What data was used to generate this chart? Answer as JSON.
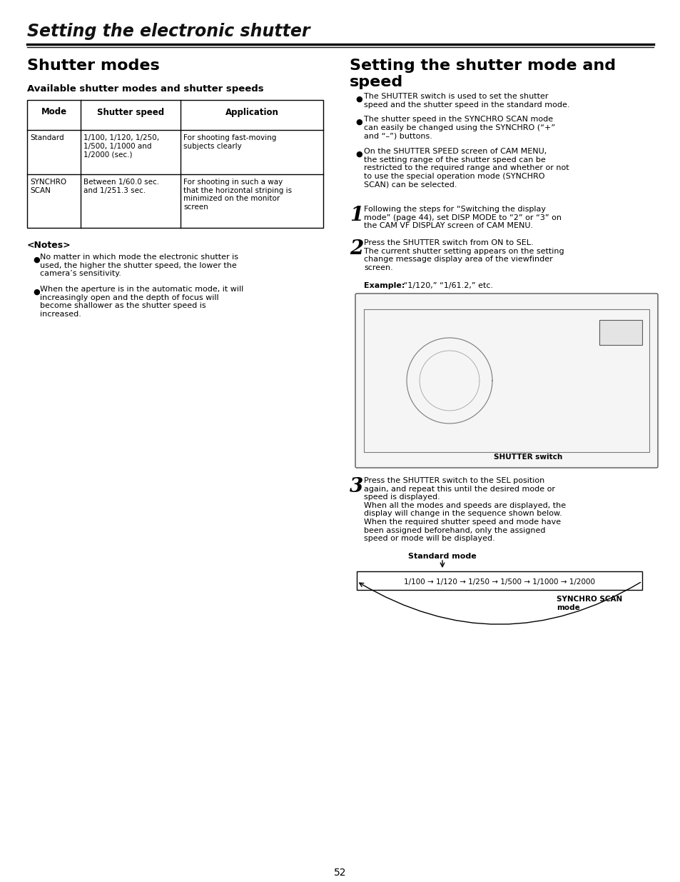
{
  "page_title": "Setting the electronic shutter",
  "left_col_title": "Shutter modes",
  "right_col_title": "Setting the shutter mode and\nspeed",
  "table_subtitle": "Available shutter modes and shutter speeds",
  "table_headers": [
    "Mode",
    "Shutter speed",
    "Application"
  ],
  "table_rows": [
    [
      "Standard",
      "1/100, 1/120, 1/250,\n1/500, 1/1000 and\n1/2000 (sec.)",
      "For shooting fast-moving\nsubjects clearly"
    ],
    [
      "SYNCHRO\nSCAN",
      "Between 1/60.0 sec.\nand 1/251.3 sec.",
      "For shooting in such a way\nthat the horizontal striping is\nminimized on the monitor\nscreen"
    ]
  ],
  "notes_title": "<Notes>",
  "notes": [
    "No matter in which mode the electronic shutter is\nused, the higher the shutter speed, the lower the\ncamera’s sensitivity.",
    "When the aperture is in the automatic mode, it will\nincreasingly open and the depth of focus will\nbecome shallower as the shutter speed is\nincreased."
  ],
  "right_bullets": [
    "The SHUTTER switch is used to set the shutter\nspeed and the shutter speed in the standard mode.",
    "The shutter speed in the SYNCHRO SCAN mode\ncan easily be changed using the SYNCHRO (“+”\nand “–”) buttons.",
    "On the SHUTTER SPEED screen of CAM MENU,\nthe setting range of the shutter speed can be\nrestricted to the required range and whether or not\nto use the special operation mode (SYNCHRO\nSCAN) can be selected."
  ],
  "step1_num": "1",
  "step1_text": "Following the steps for “Switching the display\nmode” (page 44), set DISP MODE to “2” or “3” on\nthe CAM VF DISPLAY screen of CAM MENU.",
  "step2_num": "2",
  "step2_text": "Press the SHUTTER switch from ON to SEL.\nThe current shutter setting appears on the setting\nchange message display area of the viewfinder\nscreen.",
  "example_label": "Example:",
  "example_text": " “1/120,” “1/61.2,” etc.",
  "step3_num": "3",
  "step3_text": "Press the SHUTTER switch to the SEL position\nagain, and repeat this until the desired mode or\nspeed is displayed.\nWhen all the modes and speeds are displayed, the\ndisplay will change in the sequence shown below.\nWhen the required shutter speed and mode have\nbeen assigned beforehand, only the assigned\nspeed or mode will be displayed.",
  "diagram_label_top": "Standard mode",
  "diagram_sequence": "1/100 → 1/120 → 1/250 → 1/500 → 1/1000 → 1/2000",
  "diagram_label_bottom": "SYNCHRO SCAN\nmode",
  "page_number": "52",
  "bg_color": "#ffffff",
  "text_color": "#000000",
  "line_color": "#000000"
}
